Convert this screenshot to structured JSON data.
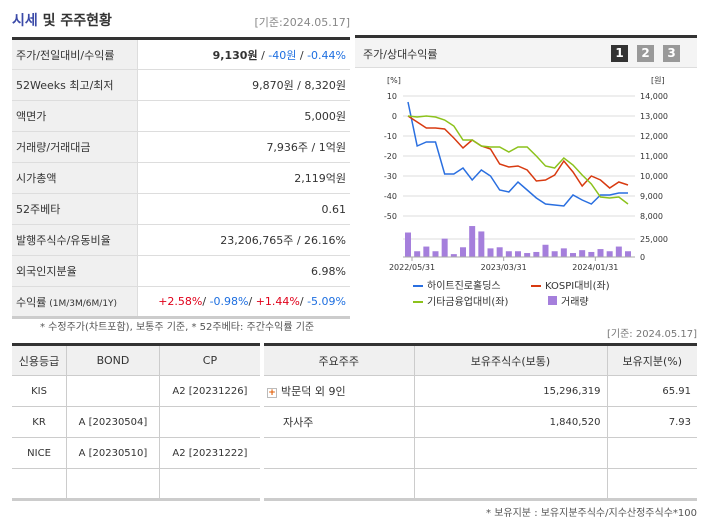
{
  "header": {
    "title_highlight": "시세",
    "title_rest": " 및 주주현황",
    "date": "[기준:2024.05.17]"
  },
  "snapshot": {
    "rows": [
      {
        "label": "주가/전일대비/수익률",
        "price": "9,130원",
        "sep1": " / ",
        "change": "-40원",
        "sep2": " / ",
        "rate": "-0.44%"
      },
      {
        "label": "52Weeks 최고/최저",
        "value": "9,870원 / 8,320원"
      },
      {
        "label": "액면가",
        "value": "5,000원"
      },
      {
        "label": "거래량/거래대금",
        "value": "7,936주 / 1억원"
      },
      {
        "label": "시가총액",
        "value": "2,119억원"
      },
      {
        "label": "52주베타",
        "value": "0.61"
      },
      {
        "label": "발행주식수/유동비율",
        "value": "23,206,765주 / 26.16%"
      },
      {
        "label": "외국인지분율",
        "value": "6.98%"
      },
      {
        "label": "수익률",
        "label_sub": " (1M/3M/6M/1Y)",
        "r1": "+2.58%",
        "r2": "-0.98%",
        "r3": "+1.44%",
        "r4": "-5.09%",
        "sep": "/ "
      }
    ]
  },
  "note": "* 수정주가(차트포함), 보통주 기준, * 52주베타: 주간수익률 기준",
  "chart_panel": {
    "title": "주가/상대수익률",
    "pages": [
      "1",
      "2",
      "3"
    ],
    "active_page": "1"
  },
  "chart_data": {
    "type": "line",
    "left_unit": "[%]",
    "right_unit": "[원]",
    "left_ticks": [
      "10",
      "0",
      "-10",
      "-20",
      "-30",
      "-40",
      "-50"
    ],
    "left_range": [
      -50,
      10
    ],
    "right_ticks": [
      "14,000",
      "13,000",
      "12,000",
      "11,000",
      "10,000",
      "9,000",
      "8,000"
    ],
    "volume_ticks": [
      "25,000",
      "0"
    ],
    "volume_range": [
      0,
      25000
    ],
    "x_labels": [
      {
        "index": 0,
        "label": "2022/05/31"
      },
      {
        "index": 10,
        "label": "2023/03/31"
      },
      {
        "index": 20,
        "label": "2024/01/31"
      }
    ],
    "series": [
      {
        "name": "하이트진로홀딩스",
        "color": "#2a6fe0",
        "values": [
          7,
          -15,
          -13,
          -13,
          -29,
          -29,
          -26,
          -32,
          -27,
          -30,
          -37,
          -38,
          -33,
          -37,
          -41,
          -44,
          -44.5,
          -45,
          -39.5,
          -42,
          -44,
          -39.5,
          -39.5,
          -38.5,
          -38.5
        ]
      },
      {
        "name": "KOSPI대비(좌)",
        "color": "#d83a10",
        "values": [
          0,
          -3,
          -6,
          -6,
          -6.5,
          -11,
          -16,
          -12,
          -15,
          -16.5,
          -24,
          -25.5,
          -25,
          -27,
          -32.5,
          -32,
          -29.5,
          -22.5,
          -28,
          -35,
          -30,
          -32,
          -36,
          -33,
          -34.5
        ]
      },
      {
        "name": "기타금융업대비(좌)",
        "color": "#8cc21c",
        "values": [
          0,
          -0.5,
          0,
          -0.5,
          -2,
          -5,
          -12,
          -12,
          -15,
          -15.5,
          -15.5,
          -18,
          -15.5,
          -15.5,
          -20,
          -25,
          -26,
          -21,
          -24.5,
          -29.5,
          -34,
          -40.5,
          -41,
          -40.5,
          -44
        ]
      }
    ],
    "volume": {
      "name": "거래량",
      "color": "#a57fdc",
      "values": [
        34000,
        8000,
        14500,
        8000,
        25500,
        4000,
        13500,
        43000,
        35500,
        12000,
        13500,
        8000,
        8000,
        5500,
        7000,
        17000,
        8000,
        12000,
        5500,
        9500,
        7000,
        11000,
        8000,
        14500,
        8000
      ]
    }
  },
  "date2": "[기준: 2024.05.17]",
  "credit": {
    "headers": [
      "신용등급",
      "BOND",
      "CP"
    ],
    "rows": [
      [
        "KIS",
        "",
        "A2  [20231226]"
      ],
      [
        "KR",
        "A  [20230504]",
        ""
      ],
      [
        "NICE",
        "A  [20230510]",
        "A2  [20231222]"
      ],
      [
        "",
        "",
        ""
      ]
    ]
  },
  "holders": {
    "headers": [
      "주요주주",
      "보유주식수(보통)",
      "보유지분(%)"
    ],
    "rows": [
      {
        "name": "박문덕 외 9인",
        "shares": "15,296,319",
        "pct": "65.91",
        "expand": true
      },
      {
        "name": "자사주",
        "shares": "1,840,520",
        "pct": "7.93"
      },
      {
        "name": "",
        "shares": "",
        "pct": ""
      },
      {
        "name": "",
        "shares": "",
        "pct": ""
      }
    ]
  },
  "foot": "* 보유지분 : 보유지분주식수/지수산정주식수*100"
}
